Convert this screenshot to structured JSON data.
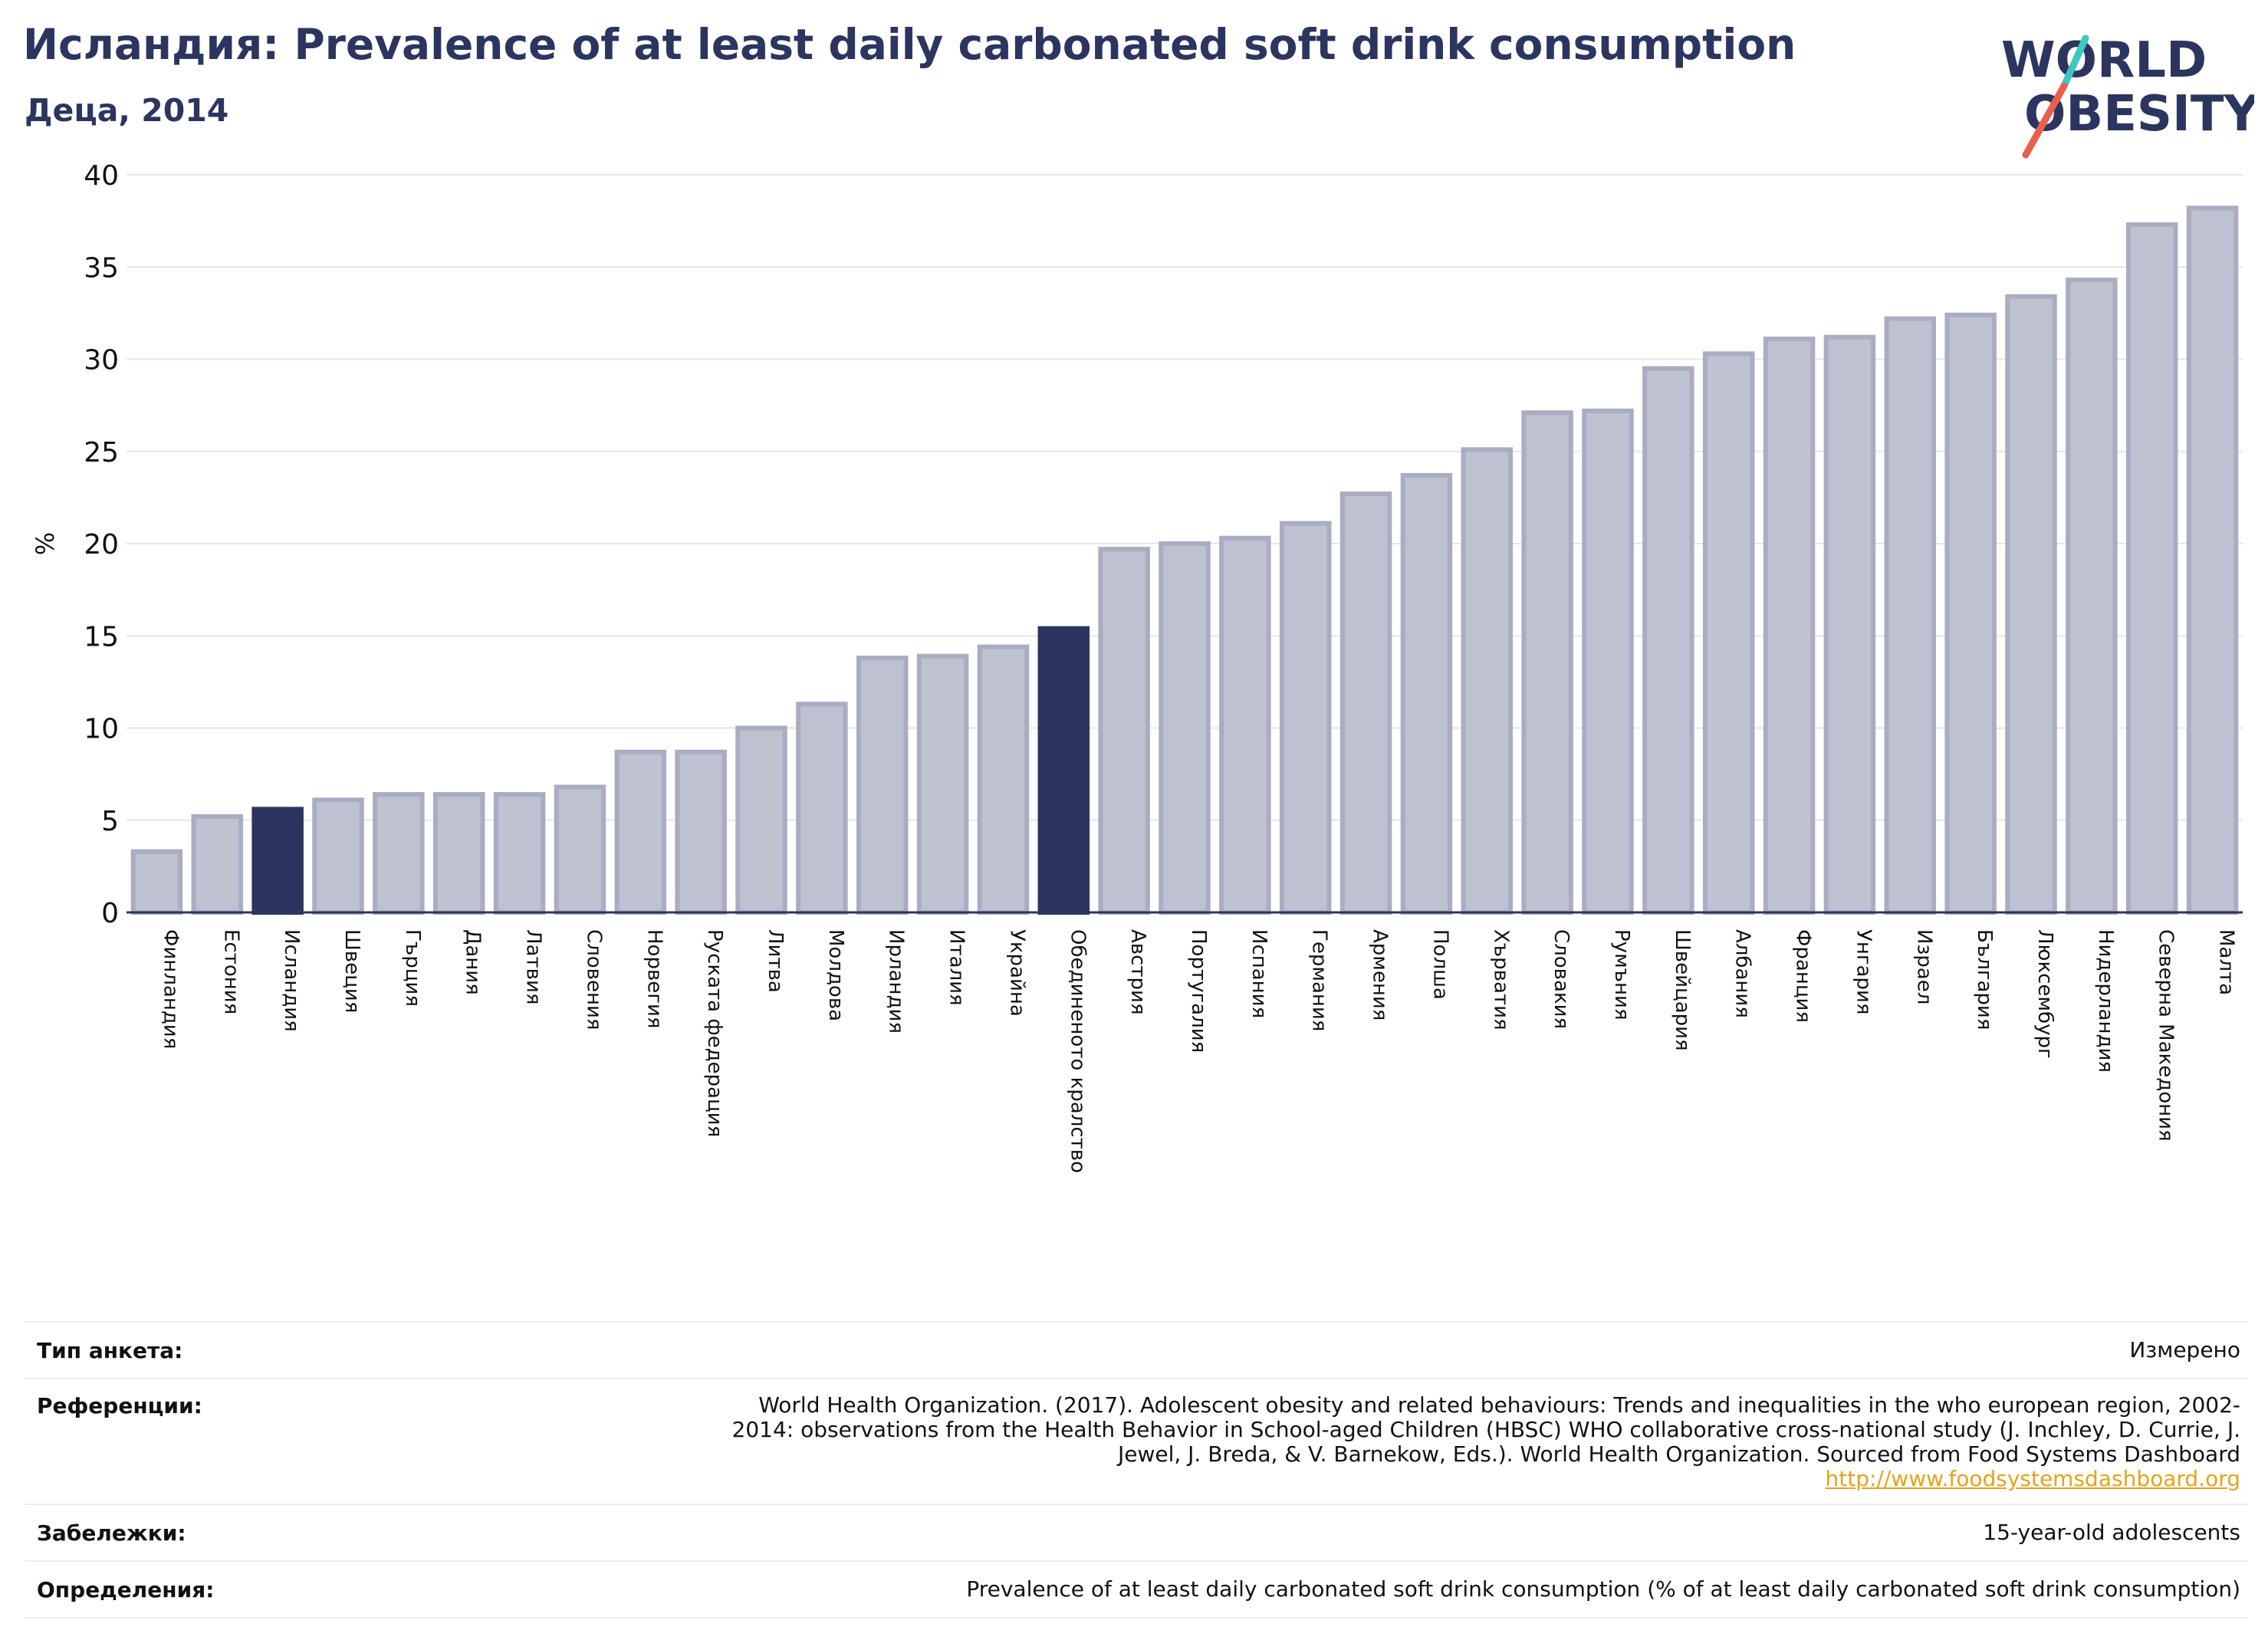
{
  "title": "Исландия: Prevalence of at least daily carbonated soft drink consumption",
  "subtitle": "Деца, 2014",
  "logo": {
    "line1": "WORLD",
    "line2": "OBESITY"
  },
  "colors": {
    "bar": "#bec1cf",
    "bar_stroke": "#a9adc2",
    "highlight": "#2b3560",
    "text": "#2b3560",
    "logo_teal": "#3ec6c0",
    "logo_red": "#e8604c"
  },
  "chart_data": {
    "type": "bar",
    "ylabel": "%",
    "ylim": [
      0,
      40
    ],
    "yticks": [
      0,
      5,
      10,
      15,
      20,
      25,
      30,
      35,
      40
    ],
    "grid": true,
    "categories": [
      "Финландия",
      "Естония",
      "Исландия",
      "Швеция",
      "Гърция",
      "Дания",
      "Латвия",
      "Словения",
      "Норвегия",
      "Руската федерация",
      "Литва",
      "Молдова",
      "Ирландия",
      "Италия",
      "Украйна",
      "Обединеното кралство",
      "Австрия",
      "Португалия",
      "Испания",
      "Германия",
      "Армения",
      "Полша",
      "Хърватия",
      "Словакия",
      "Румъния",
      "Швейцария",
      "Албания",
      "Франция",
      "Унгария",
      "Израел",
      "България",
      "Люксембург",
      "Нидерландия",
      "Северна Македония",
      "Малта"
    ],
    "values": [
      3.3,
      5.2,
      5.6,
      6.1,
      6.4,
      6.4,
      6.4,
      6.8,
      8.7,
      8.7,
      10.0,
      11.3,
      13.8,
      13.9,
      14.4,
      15.4,
      19.7,
      20.0,
      20.3,
      21.1,
      22.7,
      23.7,
      25.1,
      27.1,
      27.2,
      29.5,
      30.3,
      31.1,
      31.2,
      32.2,
      32.4,
      33.4,
      34.3,
      37.3,
      38.2
    ],
    "highlight_categories": [
      "Исландия"
    ],
    "reference_bar": {
      "value": 15.4,
      "label": ""
    }
  },
  "info": {
    "survey_type": {
      "key": "Тип анкета:",
      "value": "Измерено"
    },
    "references": {
      "key": "Референции:",
      "lines": [
        "World Health Organization. (2017). Adolescent obesity and related behaviours: Trends and inequalities in the who european region, 2002-",
        "2014: observations from the Health Behavior in School-aged Children (HBSC) WHO collaborative cross-national study (J. Inchley, D. Currie, J.",
        "Jewel, J. Breda, & V. Barnekow, Eds.). World Health Organization. Sourced from Food Systems Dashboard"
      ],
      "link": "http://www.foodsystemsdashboard.org"
    },
    "notes": {
      "key": "Забележки:",
      "value": "15-year-old adolescents"
    },
    "definitions": {
      "key": "Определения:",
      "value": "Prevalence of at least daily carbonated soft drink consumption (% of at least daily carbonated soft drink consumption)"
    }
  }
}
